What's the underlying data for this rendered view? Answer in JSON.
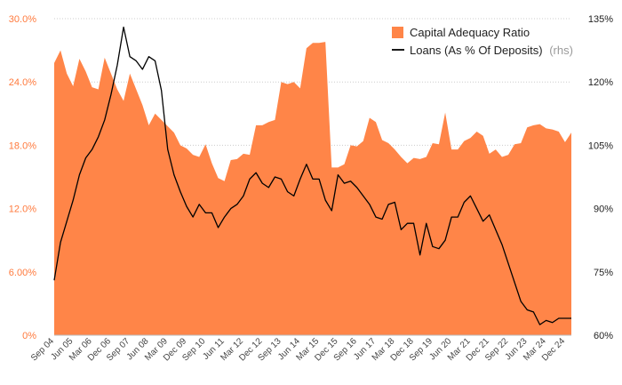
{
  "colors": {
    "area": "#ff8548",
    "line": "#000000",
    "left_axis_text": "#ff7a3d",
    "right_axis_text": "#222222",
    "grid": "#cccccc"
  },
  "chart_data": {
    "type": "area+line",
    "legend": {
      "position": "top-right",
      "area_label": "Capital Adequacy Ratio",
      "line_label": "Loans (As % Of Deposits)",
      "line_suffix": "(rhs)"
    },
    "y_left": {
      "ticks": [
        "0%",
        "6.00%",
        "12.0%",
        "18.0%",
        "24.0%",
        "30.0%"
      ],
      "values": [
        0,
        6,
        12,
        18,
        24,
        30
      ],
      "range": [
        0,
        30
      ]
    },
    "y_right": {
      "ticks": [
        "60%",
        "75%",
        "90%",
        "105%",
        "120%",
        "135%"
      ],
      "values": [
        60,
        75,
        90,
        105,
        120,
        135
      ],
      "range": [
        60,
        135
      ]
    },
    "x_labels": [
      "Sep 04",
      "Jun 05",
      "Mar 06",
      "Dec 06",
      "Sep 07",
      "Jun 08",
      "Mar 09",
      "Dec 09",
      "Sep 10",
      "Jun 11",
      "Mar 12",
      "Dec 12",
      "Sep 13",
      "Jun 14",
      "Mar 15",
      "Dec 15",
      "Sep 16",
      "Jun 17",
      "Mar 18",
      "Dec 18",
      "Sep 19",
      "Jun 20",
      "Mar 21",
      "Dec 21",
      "Sep 22",
      "Jun 23",
      "Mar 24",
      "Dec 24"
    ],
    "grid": "horizontal",
    "series": [
      {
        "name": "Capital Adequacy Ratio",
        "kind": "area",
        "axis": "left",
        "values": [
          25.8,
          27.0,
          24.8,
          23.6,
          26.2,
          25.0,
          23.5,
          23.3,
          26.3,
          24.8,
          23.3,
          22.2,
          24.8,
          23.3,
          21.8,
          19.9,
          21.0,
          20.4,
          19.8,
          19.2,
          18.0,
          17.7,
          17.1,
          16.9,
          18.1,
          16.3,
          14.9,
          14.6,
          16.6,
          16.7,
          17.2,
          17.1,
          19.9,
          19.9,
          20.2,
          20.4,
          24.0,
          23.8,
          24.0,
          23.4,
          27.2,
          27.7,
          27.7,
          27.8,
          15.9,
          15.9,
          16.2,
          18.0,
          17.9,
          18.4,
          20.6,
          20.2,
          18.5,
          18.2,
          17.6,
          16.9,
          16.3,
          16.8,
          16.7,
          16.9,
          18.2,
          18.1,
          21.1,
          17.6,
          17.6,
          18.4,
          18.7,
          19.3,
          18.9,
          17.2,
          17.6,
          16.9,
          17.1,
          18.1,
          18.2,
          19.7,
          19.9,
          20.0,
          19.6,
          19.5,
          19.3,
          18.3,
          19.2
        ]
      },
      {
        "name": "Loans (As % Of Deposits)",
        "kind": "line",
        "axis": "right",
        "values": [
          73.0,
          82.0,
          87.0,
          92.0,
          98.0,
          102.0,
          104.0,
          107.0,
          111.0,
          117.0,
          124.0,
          133.0,
          126.0,
          125.0,
          123.0,
          126.0,
          125.0,
          118.0,
          104.0,
          98.0,
          94.0,
          90.5,
          88.0,
          91.0,
          89.0,
          89.0,
          85.5,
          88.0,
          90.0,
          91.0,
          93.0,
          97.0,
          98.5,
          96.0,
          95.0,
          97.5,
          97.0,
          94.0,
          93.0,
          97.0,
          100.5,
          97.0,
          97.0,
          92.0,
          89.5,
          98.0,
          96.0,
          96.5,
          95.0,
          93.0,
          91.0,
          88.0,
          87.5,
          91.0,
          91.5,
          85.0,
          86.5,
          86.5,
          79.0,
          86.5,
          81.0,
          80.5,
          82.5,
          88.0,
          88.0,
          91.5,
          93.0,
          90.0,
          87.0,
          88.5,
          85.0,
          81.5,
          77.0,
          72.5,
          68.0,
          66.0,
          65.5,
          62.5,
          63.5,
          63.0,
          64.0,
          64.0,
          64.0
        ]
      }
    ]
  }
}
